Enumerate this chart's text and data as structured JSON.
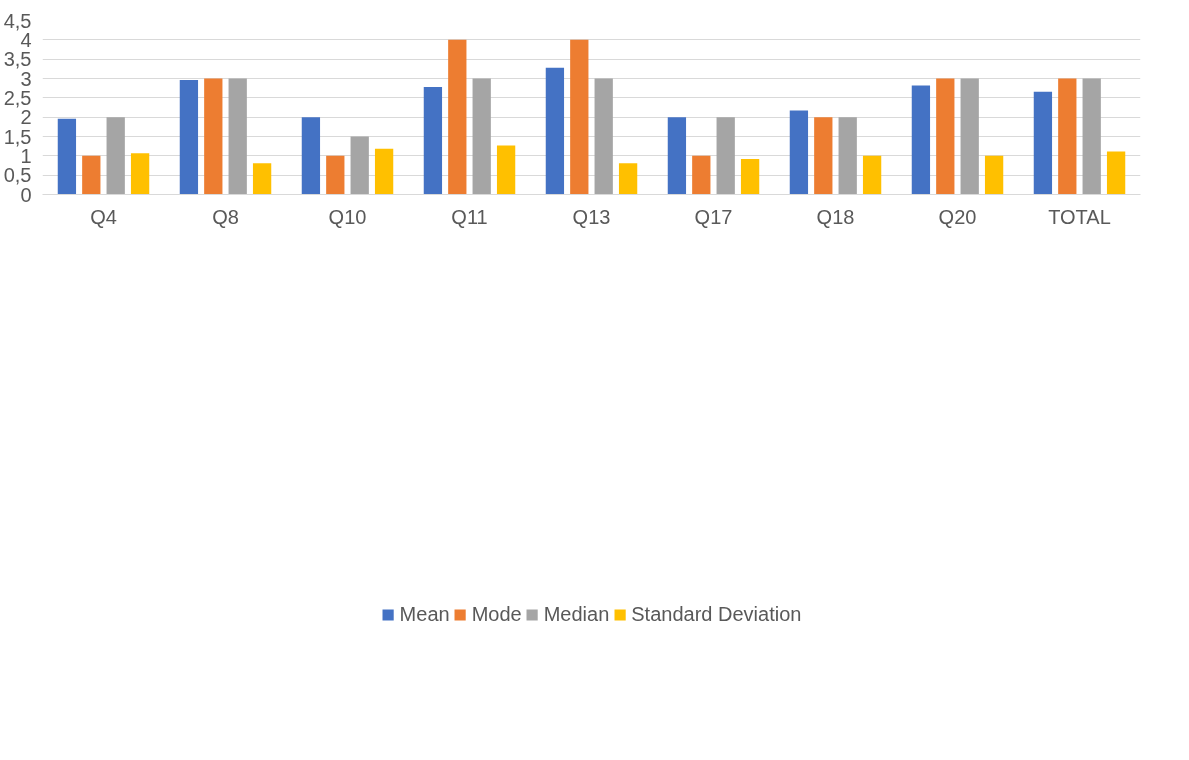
{
  "chart_data": {
    "type": "bar",
    "categories": [
      "Q4",
      "Q8",
      "Q10",
      "Q11",
      "Q13",
      "Q17",
      "Q18",
      "Q20",
      "TOTAL"
    ],
    "series": [
      {
        "name": "Mean",
        "color": "#4472c4",
        "values": [
          1.96,
          2.96,
          2.0,
          2.78,
          3.28,
          2.0,
          2.17,
          2.82,
          2.66
        ]
      },
      {
        "name": "Mode",
        "color": "#ed7d31",
        "values": [
          1,
          3,
          1,
          4,
          4,
          1,
          2,
          3,
          3
        ]
      },
      {
        "name": "Median",
        "color": "#a5a5a5",
        "values": [
          2,
          3,
          1.5,
          3,
          3,
          2,
          2,
          3,
          3
        ]
      },
      {
        "name": "Standard Deviation",
        "color": "#ffc000",
        "values": [
          1.07,
          0.81,
          1.18,
          1.27,
          0.81,
          0.92,
          1.0,
          1.0,
          1.11
        ]
      }
    ],
    "ylim": [
      0,
      4.5
    ],
    "yticks": [
      0,
      {
        "value": 0.5,
        "label": "0,5"
      },
      1,
      {
        "value": 1.5,
        "label": "1,5"
      },
      2,
      {
        "value": 2.5,
        "label": "2,5"
      },
      3,
      {
        "value": 3.5,
        "label": "3,5"
      },
      4,
      {
        "value": 4.5,
        "label": "4,5"
      }
    ],
    "grid": "y",
    "legend": "bottom"
  }
}
